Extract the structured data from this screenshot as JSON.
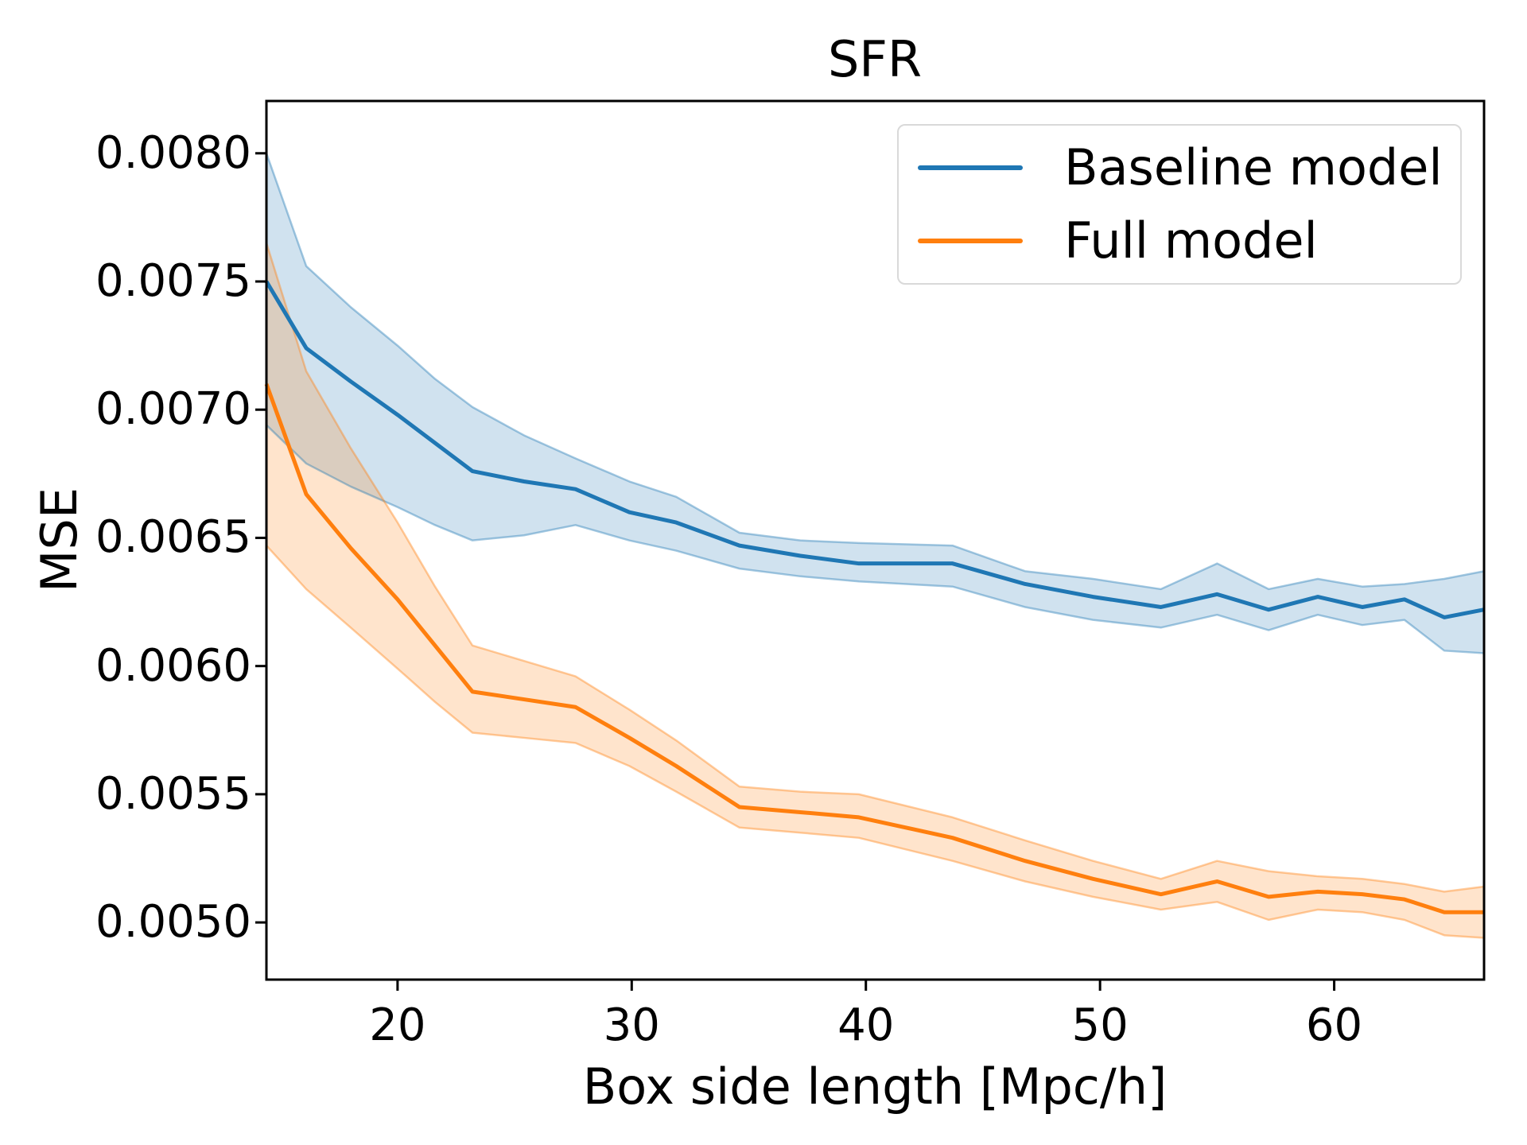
{
  "figure": {
    "title": "SFR",
    "xlabel": "Box side length [Mpc/h]",
    "ylabel": "MSE"
  },
  "chart_data": {
    "type": "line",
    "title": "SFR",
    "xlabel": "Box side length [Mpc/h]",
    "ylabel": "MSE",
    "grid": false,
    "legend_position": "upper right",
    "xlim": [
      14.4,
      66.4
    ],
    "ylim": [
      0.004777,
      0.008204
    ],
    "x_ticks": [
      20,
      30,
      40,
      50,
      60
    ],
    "x_tick_labels": [
      "20",
      "30",
      "40",
      "50",
      "60"
    ],
    "y_ticks": [
      0.005,
      0.0055,
      0.006,
      0.0065,
      0.007,
      0.0075,
      0.008
    ],
    "y_tick_labels": [
      "0.0050",
      "0.0055",
      "0.0060",
      "0.0065",
      "0.0070",
      "0.0075",
      "0.0080"
    ],
    "x": [
      14.4,
      16.1,
      18.0,
      20.0,
      21.6,
      23.2,
      25.4,
      27.6,
      29.9,
      31.9,
      34.6,
      37.2,
      39.7,
      43.7,
      46.8,
      49.7,
      52.6,
      55.0,
      57.2,
      59.3,
      61.2,
      63.0,
      64.7,
      66.4
    ],
    "series": [
      {
        "name": "Baseline model",
        "color": "#1f77b4",
        "values": [
          0.0075,
          0.00724,
          0.00711,
          0.00698,
          0.00687,
          0.00676,
          0.00672,
          0.00669,
          0.0066,
          0.00656,
          0.00647,
          0.00643,
          0.0064,
          0.0064,
          0.00632,
          0.00627,
          0.00623,
          0.00628,
          0.00622,
          0.00627,
          0.00623,
          0.00626,
          0.00619,
          0.00622
        ],
        "band_upper": [
          0.008,
          0.00756,
          0.0074,
          0.00725,
          0.00712,
          0.00701,
          0.0069,
          0.00681,
          0.00672,
          0.00666,
          0.00652,
          0.00649,
          0.00648,
          0.00647,
          0.00637,
          0.00634,
          0.0063,
          0.0064,
          0.0063,
          0.00634,
          0.00631,
          0.00632,
          0.00634,
          0.00637
        ],
        "band_lower": [
          0.00694,
          0.00679,
          0.0067,
          0.00662,
          0.00655,
          0.00649,
          0.00651,
          0.00655,
          0.00649,
          0.00645,
          0.00638,
          0.00635,
          0.00633,
          0.00631,
          0.00623,
          0.00618,
          0.00615,
          0.0062,
          0.00614,
          0.0062,
          0.00616,
          0.00618,
          0.00606,
          0.00605
        ]
      },
      {
        "name": "Full model",
        "color": "#ff7f0e",
        "values": [
          0.0071,
          0.00667,
          0.00646,
          0.00626,
          0.00608,
          0.0059,
          0.00587,
          0.00584,
          0.00572,
          0.00561,
          0.00545,
          0.00543,
          0.00541,
          0.00533,
          0.00524,
          0.00517,
          0.00511,
          0.00516,
          0.0051,
          0.00512,
          0.00511,
          0.00509,
          0.00504,
          0.00504
        ],
        "band_upper": [
          0.00765,
          0.00715,
          0.00685,
          0.00656,
          0.00631,
          0.00608,
          0.00602,
          0.00596,
          0.00583,
          0.00571,
          0.00553,
          0.00551,
          0.0055,
          0.00541,
          0.00532,
          0.00524,
          0.00517,
          0.00524,
          0.0052,
          0.00518,
          0.00517,
          0.00515,
          0.00512,
          0.00514
        ],
        "band_lower": [
          0.00647,
          0.0063,
          0.00615,
          0.00599,
          0.00586,
          0.00574,
          0.00572,
          0.0057,
          0.00561,
          0.00551,
          0.00537,
          0.00535,
          0.00533,
          0.00524,
          0.00516,
          0.0051,
          0.00505,
          0.00508,
          0.00501,
          0.00505,
          0.00504,
          0.00501,
          0.00495,
          0.00494
        ]
      }
    ]
  }
}
